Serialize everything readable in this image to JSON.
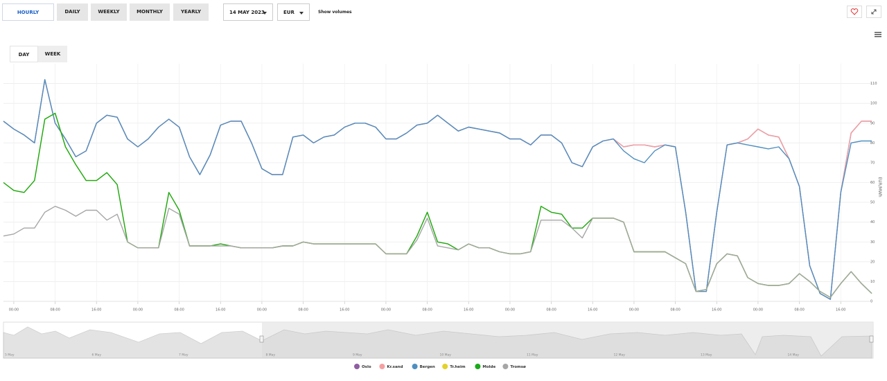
{
  "toolbar": {
    "periods": [
      "HOURLY",
      "DAILY",
      "WEEKLY",
      "MONTHLY",
      "YEARLY"
    ],
    "date": "14 MAY 2023",
    "currency": "EUR",
    "volumes": "Show volumes"
  },
  "views": [
    "DAY",
    "WEEK"
  ],
  "chart_data": {
    "type": "line",
    "y_label": "EUR/MWh",
    "x": [
      -2,
      0,
      2,
      4,
      6,
      8,
      10,
      12,
      14,
      16,
      18,
      20,
      22,
      24,
      26,
      28,
      30,
      32,
      34,
      36,
      38,
      40,
      42,
      44,
      46,
      48,
      50,
      52,
      54,
      56,
      58,
      60,
      62,
      64,
      66,
      68,
      70,
      72,
      74,
      76,
      78,
      80,
      82,
      84,
      86,
      88,
      90,
      92,
      94,
      96,
      98,
      100,
      102,
      104,
      106,
      108,
      110,
      112,
      114,
      116,
      118,
      120,
      122,
      124,
      126,
      128,
      130,
      132,
      134,
      136,
      138,
      140,
      142,
      144,
      146,
      148,
      150,
      152,
      154,
      156,
      158,
      160,
      162,
      164,
      166
    ],
    "xlim": [
      -2,
      166
    ],
    "xticks": [
      {
        "value": 0,
        "label": "00:00"
      },
      {
        "value": 8,
        "label": "08:00"
      },
      {
        "value": 16,
        "label": "16:00"
      },
      {
        "value": 24,
        "label": "00:00"
      },
      {
        "value": 32,
        "label": "08:00"
      },
      {
        "value": 40,
        "label": "16:00"
      },
      {
        "value": 48,
        "label": "00:00"
      },
      {
        "value": 56,
        "label": "08:00"
      },
      {
        "value": 64,
        "label": "16:00"
      },
      {
        "value": 72,
        "label": "00:00"
      },
      {
        "value": 80,
        "label": "08:00"
      },
      {
        "value": 88,
        "label": "16:00"
      },
      {
        "value": 96,
        "label": "00:00"
      },
      {
        "value": 104,
        "label": "08:00"
      },
      {
        "value": 112,
        "label": "16:00"
      },
      {
        "value": 120,
        "label": "00:00"
      },
      {
        "value": 128,
        "label": "08:00"
      },
      {
        "value": 136,
        "label": "16:00"
      },
      {
        "value": 144,
        "label": "00:00"
      },
      {
        "value": 152,
        "label": "08:00"
      },
      {
        "value": 160,
        "label": "16:00"
      }
    ],
    "ylim": [
      0,
      120
    ],
    "yticks": [
      0,
      10,
      20,
      30,
      40,
      50,
      60,
      70,
      80,
      90,
      100,
      110
    ],
    "grid": true,
    "series": [
      {
        "name": "Oslo",
        "color": "#8e5ea2",
        "values": [
          91,
          87,
          84,
          80,
          112,
          90,
          82,
          73,
          76,
          90,
          94,
          93,
          82,
          78,
          82,
          88,
          92,
          88,
          73,
          64,
          74,
          89,
          91,
          91,
          80,
          67,
          64,
          64,
          83,
          84,
          80,
          83,
          84,
          88,
          90,
          90,
          88,
          82,
          82,
          85,
          89,
          90,
          94,
          90,
          86,
          88,
          87,
          86,
          85,
          82,
          82,
          79,
          84,
          84,
          80,
          70,
          68,
          78,
          81,
          82,
          78,
          79,
          79,
          78,
          79,
          78,
          45,
          5,
          5,
          45,
          79,
          80,
          82,
          87,
          84,
          83,
          72,
          58,
          18,
          4,
          1,
          55,
          85,
          91,
          91
        ]
      },
      {
        "name": "Kr.sand",
        "color": "#f4a0a0",
        "values": [
          91,
          87,
          84,
          80,
          112,
          90,
          82,
          73,
          76,
          90,
          94,
          93,
          82,
          78,
          82,
          88,
          92,
          88,
          73,
          64,
          74,
          89,
          91,
          91,
          80,
          67,
          64,
          64,
          83,
          84,
          80,
          83,
          84,
          88,
          90,
          90,
          88,
          82,
          82,
          85,
          89,
          90,
          94,
          90,
          86,
          88,
          87,
          86,
          85,
          82,
          82,
          79,
          84,
          84,
          80,
          70,
          68,
          78,
          81,
          82,
          78,
          79,
          79,
          78,
          79,
          78,
          45,
          5,
          5,
          45,
          79,
          80,
          82,
          87,
          84,
          83,
          72,
          58,
          18,
          4,
          1,
          55,
          85,
          91,
          91
        ]
      },
      {
        "name": "Bergen",
        "color": "#4f8fc0",
        "values": [
          91,
          87,
          84,
          80,
          112,
          90,
          82,
          73,
          76,
          90,
          94,
          93,
          82,
          78,
          82,
          88,
          92,
          88,
          73,
          64,
          74,
          89,
          91,
          91,
          80,
          67,
          64,
          64,
          83,
          84,
          80,
          83,
          84,
          88,
          90,
          90,
          88,
          82,
          82,
          85,
          89,
          90,
          94,
          90,
          86,
          88,
          87,
          86,
          85,
          82,
          82,
          79,
          84,
          84,
          80,
          70,
          68,
          78,
          81,
          82,
          76,
          72,
          70,
          76,
          79,
          78,
          45,
          5,
          5,
          45,
          79,
          80,
          79,
          78,
          77,
          78,
          72,
          58,
          18,
          4,
          1,
          55,
          80,
          81,
          81
        ]
      },
      {
        "name": "Tr.heim",
        "color": "#e2d22a",
        "values": [
          60,
          56,
          55,
          61,
          92,
          95,
          78,
          69,
          61,
          61,
          65,
          59,
          30,
          27,
          27,
          27,
          55,
          46,
          28,
          28,
          28,
          29,
          28,
          27,
          27,
          27,
          27,
          28,
          28,
          30,
          29,
          29,
          29,
          29,
          29,
          29,
          29,
          24,
          24,
          24,
          33,
          45,
          30,
          29,
          26,
          29,
          27,
          27,
          25,
          24,
          24,
          25,
          48,
          45,
          44,
          37,
          37,
          42,
          42,
          42,
          40,
          25,
          25,
          25,
          25,
          22,
          19,
          5,
          6,
          19,
          24,
          23,
          12,
          9,
          8,
          8,
          9,
          14,
          10,
          5,
          2,
          9,
          15,
          9,
          4
        ]
      },
      {
        "name": "Molde",
        "color": "#1aaa1a",
        "values": [
          60,
          56,
          55,
          61,
          92,
          95,
          78,
          69,
          61,
          61,
          65,
          59,
          30,
          27,
          27,
          27,
          55,
          46,
          28,
          28,
          28,
          29,
          28,
          27,
          27,
          27,
          27,
          28,
          28,
          30,
          29,
          29,
          29,
          29,
          29,
          29,
          29,
          24,
          24,
          24,
          33,
          45,
          30,
          29,
          26,
          29,
          27,
          27,
          25,
          24,
          24,
          25,
          48,
          45,
          44,
          37,
          37,
          42,
          42,
          42,
          40,
          25,
          25,
          25,
          25,
          22,
          19,
          5,
          6,
          19,
          24,
          23,
          12,
          9,
          8,
          8,
          9,
          14,
          10,
          5,
          2,
          9,
          15,
          9,
          4
        ]
      },
      {
        "name": "Tromsø",
        "color": "#a6a6a6",
        "values": [
          33,
          34,
          37,
          37,
          45,
          48,
          46,
          43,
          46,
          46,
          41,
          44,
          30,
          27,
          27,
          27,
          47,
          44,
          28,
          28,
          28,
          28,
          28,
          27,
          27,
          27,
          27,
          28,
          28,
          30,
          29,
          29,
          29,
          29,
          29,
          29,
          29,
          24,
          24,
          24,
          31,
          42,
          28,
          27,
          26,
          29,
          27,
          27,
          25,
          24,
          24,
          25,
          41,
          41,
          41,
          37,
          32,
          42,
          42,
          42,
          40,
          25,
          25,
          25,
          25,
          22,
          19,
          5,
          6,
          19,
          24,
          23,
          12,
          9,
          8,
          8,
          9,
          14,
          10,
          5,
          2,
          9,
          15,
          9,
          4
        ]
      }
    ]
  },
  "navigator": {
    "labels": [
      "5 May",
      "6 May",
      "7 May",
      "8 May",
      "9 May",
      "10 May",
      "11 May",
      "12 May",
      "13 May",
      "14 May"
    ]
  }
}
